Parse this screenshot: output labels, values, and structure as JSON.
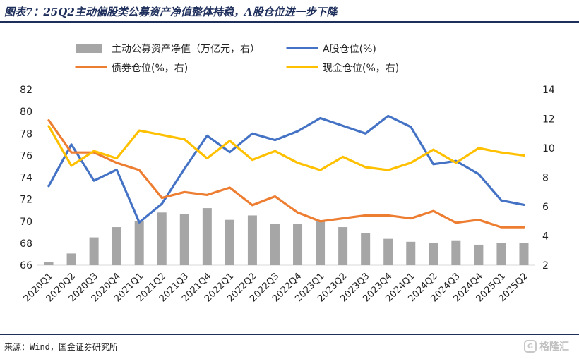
{
  "title": "图表7：25Q2主动偏股类公募资产净值整体持稳，A股仓位进一步下降",
  "source": "来源：Wind，国金证券研究所",
  "watermark": "格隆汇",
  "colors": {
    "bar": "#a6a6a6",
    "equity": "#4472c4",
    "bond": "#ed7d31",
    "cash": "#ffc000",
    "title": "#1f2f5c"
  },
  "chart_data": {
    "type": "bar+line",
    "categories": [
      "2020Q1",
      "2020Q2",
      "2020Q3",
      "2020Q4",
      "2021Q1",
      "2021Q2",
      "2021Q3",
      "2021Q4",
      "2022Q1",
      "2022Q2",
      "2022Q3",
      "2022Q4",
      "2023Q1",
      "2023Q2",
      "2023Q3",
      "2023Q4",
      "2024Q1",
      "2024Q2",
      "2024Q3",
      "2024Q4",
      "2025Q1",
      "2025Q2"
    ],
    "left_axis": {
      "min": 66,
      "max": 82,
      "ticks": [
        66,
        68,
        70,
        72,
        74,
        76,
        78,
        80,
        82
      ]
    },
    "right_axis": {
      "min": 2,
      "max": 14,
      "ticks": [
        2,
        4,
        6,
        8,
        10,
        12,
        14
      ]
    },
    "series": [
      {
        "name": "主动公募资产净值（万亿元，右）",
        "type": "bar",
        "axis": "right",
        "values": [
          2.2,
          2.8,
          3.9,
          4.6,
          5.0,
          5.6,
          5.5,
          5.9,
          5.1,
          5.4,
          4.8,
          4.8,
          5.0,
          4.6,
          4.2,
          3.8,
          3.6,
          3.5,
          3.7,
          3.4,
          3.5,
          3.5
        ]
      },
      {
        "name": "A股仓位(%)",
        "type": "line",
        "axis": "left",
        "values": [
          73.2,
          77.0,
          73.7,
          74.7,
          69.9,
          71.6,
          74.8,
          77.8,
          76.3,
          78.0,
          77.4,
          78.2,
          79.4,
          78.7,
          78.0,
          79.6,
          78.6,
          75.2,
          75.5,
          74.3,
          71.9,
          71.5
        ]
      },
      {
        "name": "债券仓位(%，右)",
        "type": "line",
        "axis": "right",
        "values": [
          11.9,
          9.7,
          9.7,
          9.0,
          8.5,
          6.6,
          7.0,
          6.8,
          7.3,
          6.1,
          6.7,
          5.6,
          5.0,
          5.2,
          5.4,
          5.4,
          5.2,
          5.7,
          4.9,
          5.1,
          4.6,
          4.6
        ]
      },
      {
        "name": "现金仓位(%，右)",
        "type": "line",
        "axis": "right",
        "values": [
          11.5,
          8.8,
          9.8,
          9.3,
          11.2,
          10.9,
          10.6,
          9.3,
          10.5,
          9.2,
          9.8,
          9.0,
          8.5,
          9.4,
          8.7,
          8.5,
          9.0,
          9.9,
          9.0,
          10.0,
          9.7,
          9.5
        ]
      }
    ],
    "legend_position": "top"
  }
}
